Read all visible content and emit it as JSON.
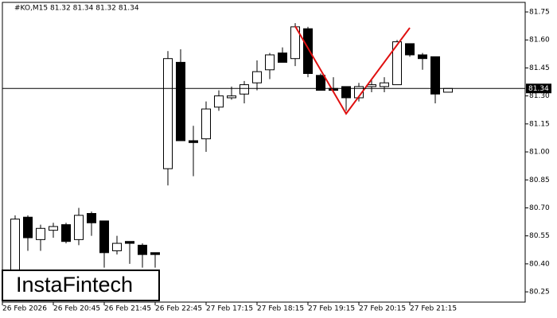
{
  "chart_data": {
    "type": "candlestick",
    "title": "#KO,M15  81.32 81.34 81.32 81.34",
    "categories": [
      "26 Feb 2026",
      null,
      null,
      null,
      "26 Feb 20:45",
      null,
      null,
      null,
      "26 Feb 21:45",
      null,
      null,
      null,
      "26 Feb 22:45",
      null,
      null,
      null,
      "27 Feb 17:15",
      null,
      null,
      null,
      "27 Feb 18:15",
      null,
      null,
      null,
      "27 Feb 19:15",
      null,
      null,
      null,
      "27 Feb 20:15",
      null,
      null,
      null,
      "27 Feb 21:15",
      null,
      null
    ],
    "open": [
      80.3,
      80.65,
      80.53,
      80.58,
      80.61,
      80.53,
      80.67,
      80.63,
      80.47,
      80.52,
      80.5,
      80.46,
      80.91,
      81.48,
      81.06,
      81.07,
      81.24,
      81.29,
      81.31,
      81.37,
      81.44,
      81.53,
      81.5,
      81.66,
      81.41,
      81.34,
      81.35,
      81.29,
      81.35,
      81.35,
      81.36,
      81.58,
      81.52,
      81.51,
      81.32
    ],
    "high": [
      80.66,
      80.66,
      80.61,
      80.62,
      80.62,
      80.7,
      80.68,
      80.63,
      80.55,
      80.52,
      80.51,
      80.46,
      81.54,
      81.55,
      81.14,
      81.27,
      81.33,
      81.35,
      81.38,
      81.49,
      81.53,
      81.56,
      81.69,
      81.67,
      81.42,
      81.4,
      81.35,
      81.37,
      81.39,
      81.4,
      81.6,
      81.58,
      81.53,
      81.51,
      81.34
    ],
    "low": [
      80.2,
      80.47,
      80.47,
      80.54,
      80.51,
      80.5,
      80.55,
      80.38,
      80.45,
      80.4,
      80.38,
      80.38,
      80.82,
      81.06,
      80.87,
      81.0,
      81.22,
      81.28,
      81.26,
      81.33,
      81.39,
      81.48,
      81.46,
      81.4,
      81.33,
      81.32,
      81.22,
      81.27,
      81.32,
      81.32,
      81.36,
      81.51,
      81.44,
      81.26,
      81.32
    ],
    "close": [
      80.64,
      80.54,
      80.59,
      80.6,
      80.52,
      80.66,
      80.62,
      80.46,
      80.51,
      80.51,
      80.45,
      80.45,
      81.5,
      81.06,
      81.05,
      81.23,
      81.3,
      81.3,
      81.36,
      81.43,
      81.52,
      81.48,
      81.67,
      81.42,
      81.33,
      81.33,
      81.29,
      81.35,
      81.36,
      81.37,
      81.59,
      81.52,
      81.5,
      81.31,
      81.34
    ],
    "ylim": [
      80.195,
      81.814
    ],
    "yticks": [
      81.75,
      {
        "value": 81.6,
        "label": "81.60"
      },
      81.45,
      {
        "value": 81.3,
        "label": "81.30"
      },
      81.15,
      {
        "value": 81.0,
        "label": "81.00"
      },
      80.85,
      {
        "value": 80.7,
        "label": "80.70"
      },
      80.55,
      {
        "value": 80.4,
        "label": "80.40"
      },
      80.25
    ],
    "last_price": 81.34
  },
  "logo": "InstaFintech"
}
